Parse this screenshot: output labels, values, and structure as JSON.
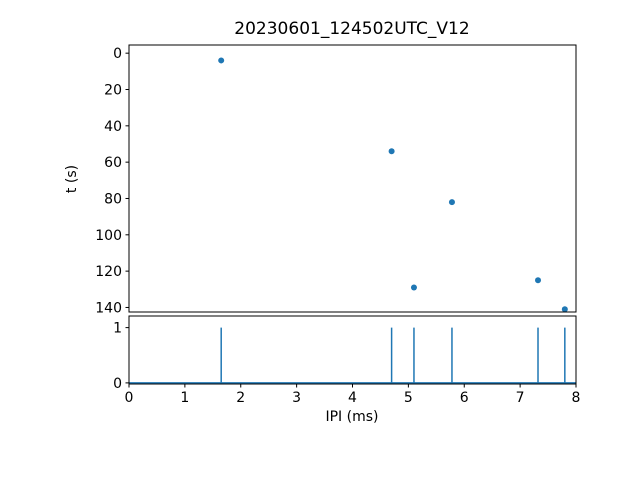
{
  "figure_title": "20230601_124502UTC_V12",
  "colors": {
    "series_blue": "#1f77b4",
    "axis_black": "#000000",
    "background": "#ffffff"
  },
  "chart_data": [
    {
      "type": "scatter",
      "title": "20230601_124502UTC_V12",
      "xlabel": "",
      "ylabel": "t (s)",
      "x": [
        1.65,
        4.7,
        5.78,
        7.32,
        5.1,
        7.8
      ],
      "y": [
        4,
        54,
        82,
        125,
        129,
        141
      ],
      "xlim": [
        0,
        8
      ],
      "ylim": [
        -4.5,
        142.5
      ],
      "y_inverted": true,
      "yticks": [
        0,
        20,
        40,
        60,
        80,
        100,
        120,
        140
      ],
      "xticks": [
        0,
        1,
        2,
        3,
        4,
        5,
        6,
        7,
        8
      ],
      "show_xtick_labels": false,
      "grid": false,
      "legend": false,
      "marker_color": "#1f77b4",
      "marker_radius": 3
    },
    {
      "type": "vlines",
      "title": "",
      "xlabel": "IPI (ms)",
      "ylabel": "",
      "x": [
        1.65,
        4.7,
        5.1,
        5.78,
        7.32,
        7.8
      ],
      "line_ymin": 0,
      "line_ymax": 1,
      "baseline_y": 0,
      "xlim": [
        0,
        8
      ],
      "ylim": [
        -0.02,
        1.21
      ],
      "y_inverted": false,
      "yticks": [
        0,
        1
      ],
      "xticks": [
        0,
        1,
        2,
        3,
        4,
        5,
        6,
        7,
        8
      ],
      "show_xtick_labels": true,
      "grid": false,
      "legend": false,
      "line_color": "#1f77b4",
      "line_width": 1.5
    }
  ]
}
